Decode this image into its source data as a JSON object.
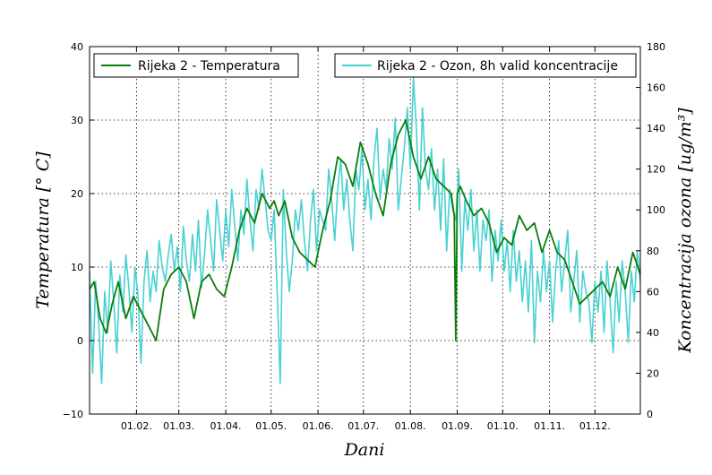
{
  "chart_data": {
    "type": "line",
    "xlabel": "Dani",
    "ylabel_left": "Temperatura [° C]",
    "ylabel_right": "Koncentracija ozona [ug/m³]",
    "x_axis": {
      "unit": "day of year",
      "range": [
        1,
        365
      ],
      "ticks": [
        {
          "day": 32,
          "label": "01.02."
        },
        {
          "day": 60,
          "label": "01.03."
        },
        {
          "day": 91,
          "label": "01.04."
        },
        {
          "day": 121,
          "label": "01.05."
        },
        {
          "day": 152,
          "label": "01.06."
        },
        {
          "day": 182,
          "label": "01.07."
        },
        {
          "day": 213,
          "label": "01.08."
        },
        {
          "day": 244,
          "label": "01.09."
        },
        {
          "day": 274,
          "label": "01.10."
        },
        {
          "day": 305,
          "label": "01.11."
        },
        {
          "day": 335,
          "label": "01.12."
        }
      ]
    },
    "y_left": {
      "range": [
        -10,
        40
      ],
      "ticks": [
        -10,
        0,
        10,
        20,
        30,
        40
      ],
      "tick_labels": [
        "−10",
        "0",
        "10",
        "20",
        "30",
        "40"
      ]
    },
    "y_right": {
      "range": [
        0,
        180
      ],
      "ticks": [
        0,
        20,
        40,
        60,
        80,
        100,
        120,
        140,
        160,
        180
      ]
    },
    "grid": true,
    "series": [
      {
        "name": "Rijeka 2 - Temperatura",
        "axis": "left",
        "color": "#0a7d0a",
        "x": [
          1,
          4,
          8,
          12,
          16,
          20,
          25,
          30,
          35,
          40,
          45,
          50,
          55,
          60,
          65,
          70,
          75,
          80,
          85,
          90,
          95,
          100,
          105,
          110,
          115,
          120,
          123,
          126,
          130,
          135,
          140,
          145,
          150,
          155,
          160,
          165,
          170,
          175,
          180,
          185,
          190,
          195,
          200,
          205,
          210,
          215,
          220,
          225,
          230,
          235,
          240,
          242,
          243,
          244,
          246,
          250,
          255,
          260,
          265,
          270,
          275,
          280,
          285,
          290,
          295,
          300,
          305,
          310,
          315,
          320,
          325,
          330,
          335,
          340,
          345,
          350,
          355,
          360,
          365
        ],
        "y": [
          7,
          8,
          3,
          1,
          5,
          8,
          3,
          6,
          4,
          2,
          0,
          7,
          9,
          10,
          8,
          3,
          8,
          9,
          7,
          6,
          10,
          15,
          18,
          16,
          20,
          18,
          19,
          17,
          19,
          14,
          12,
          11,
          10,
          15,
          19,
          25,
          24,
          21,
          27,
          24,
          20,
          17,
          24,
          28,
          30,
          25,
          22,
          25,
          22,
          21,
          20,
          17,
          0,
          20,
          21,
          19,
          17,
          18,
          16,
          12,
          14,
          13,
          17,
          15,
          16,
          12,
          15,
          12,
          11,
          8,
          5,
          6,
          7,
          8,
          6,
          10,
          7,
          12,
          9
        ]
      },
      {
        "name": "Rijeka 2 - Ozon, 8h valid koncentracije",
        "axis": "right",
        "color": "#48d1d2",
        "x": [
          1,
          3,
          5,
          7,
          9,
          11,
          13,
          15,
          17,
          19,
          21,
          23,
          25,
          27,
          29,
          31,
          33,
          35,
          37,
          39,
          41,
          43,
          45,
          47,
          49,
          51,
          53,
          55,
          57,
          59,
          61,
          63,
          65,
          67,
          69,
          71,
          73,
          75,
          77,
          79,
          81,
          83,
          85,
          87,
          89,
          91,
          93,
          95,
          97,
          99,
          101,
          103,
          105,
          107,
          109,
          111,
          113,
          115,
          117,
          119,
          121,
          123,
          125,
          127,
          129,
          131,
          133,
          135,
          137,
          139,
          141,
          143,
          145,
          147,
          149,
          151,
          153,
          155,
          157,
          159,
          161,
          163,
          165,
          167,
          169,
          171,
          173,
          175,
          177,
          179,
          181,
          183,
          185,
          187,
          189,
          191,
          193,
          195,
          197,
          199,
          201,
          203,
          205,
          207,
          209,
          211,
          213,
          215,
          217,
          219,
          221,
          223,
          225,
          227,
          229,
          231,
          233,
          235,
          237,
          239,
          241,
          243,
          245,
          247,
          249,
          251,
          253,
          255,
          257,
          259,
          261,
          263,
          265,
          267,
          269,
          271,
          273,
          275,
          277,
          279,
          281,
          283,
          285,
          287,
          289,
          291,
          293,
          295,
          297,
          299,
          301,
          303,
          305,
          307,
          309,
          311,
          313,
          315,
          317,
          319,
          321,
          323,
          325,
          327,
          329,
          331,
          333,
          335,
          337,
          339,
          341,
          343,
          345,
          347,
          349,
          351,
          353,
          355,
          357,
          359,
          361,
          363,
          365
        ],
        "y": [
          70,
          20,
          65,
          45,
          15,
          60,
          40,
          75,
          55,
          30,
          68,
          50,
          78,
          62,
          40,
          72,
          58,
          25,
          65,
          80,
          55,
          70,
          60,
          85,
          72,
          65,
          78,
          88,
          70,
          82,
          60,
          92,
          75,
          65,
          88,
          70,
          95,
          62,
          78,
          100,
          85,
          70,
          105,
          90,
          75,
          100,
          82,
          110,
          92,
          75,
          100,
          88,
          115,
          95,
          80,
          110,
          100,
          120,
          105,
          90,
          85,
          100,
          60,
          15,
          110,
          80,
          60,
          75,
          100,
          90,
          105,
          85,
          70,
          95,
          110,
          80,
          100,
          95,
          90,
          120,
          105,
          85,
          110,
          125,
          100,
          115,
          95,
          80,
          120,
          110,
          130,
          100,
          115,
          95,
          125,
          140,
          105,
          120,
          110,
          135,
          120,
          145,
          100,
          115,
          130,
          150,
          120,
          165,
          140,
          100,
          150,
          120,
          110,
          130,
          100,
          120,
          90,
          125,
          80,
          110,
          100,
          95,
          120,
          70,
          105,
          90,
          110,
          80,
          100,
          70,
          95,
          85,
          100,
          65,
          90,
          75,
          95,
          70,
          85,
          60,
          90,
          65,
          80,
          55,
          75,
          50,
          85,
          35,
          70,
          55,
          80,
          60,
          75,
          45,
          70,
          85,
          60,
          75,
          90,
          50,
          65,
          80,
          45,
          70,
          60,
          55,
          35,
          65,
          50,
          70,
          40,
          75,
          55,
          30,
          65,
          45,
          75,
          60,
          35,
          70,
          55,
          80,
          65
        ]
      }
    ]
  }
}
